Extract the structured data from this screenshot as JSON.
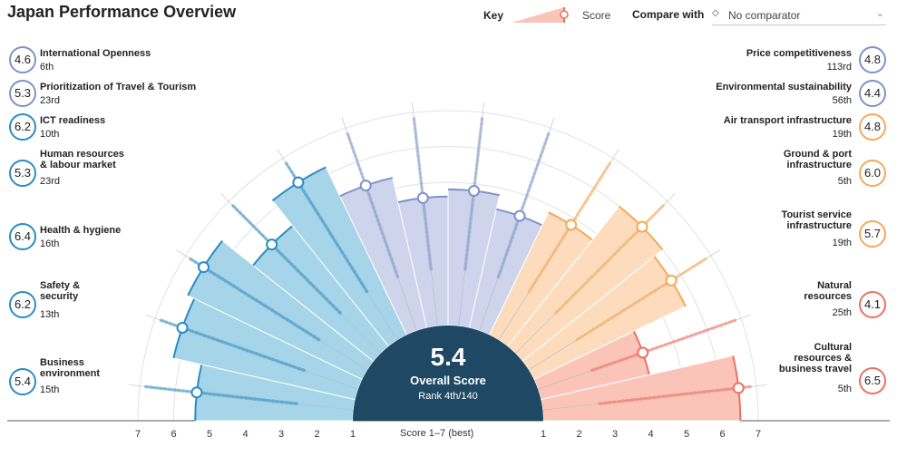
{
  "page": {
    "title": "Japan Performance Overview"
  },
  "key": {
    "label": "Key",
    "score_label": "Score"
  },
  "compare": {
    "label": "Compare with",
    "value": "No comparator",
    "icon": "diamond-icon"
  },
  "overall": {
    "score": "5.4",
    "label": "Overall Score",
    "rank": "Rank 4th/140"
  },
  "axis": {
    "note": "Score 1–7 (best)",
    "left_ticks": [
      "7",
      "6",
      "5",
      "4",
      "3",
      "2",
      "1"
    ],
    "right_ticks": [
      "1",
      "2",
      "3",
      "4",
      "5",
      "6",
      "7"
    ]
  },
  "colors": {
    "blue": "#2b8cc4",
    "blue_fill": "#a6d4e8",
    "purple": "#7f93c9",
    "purple_fill": "#cdd4ec",
    "orange": "#f5a95a",
    "orange_fill": "#fddcbe",
    "red": "#ee7060",
    "red_fill": "#fbc4b9",
    "center": "#1e4863"
  },
  "chart_data": {
    "type": "radial-bar",
    "title": "Japan Performance Overview",
    "scale": [
      1,
      7
    ],
    "series": [
      {
        "name": "Business environment",
        "score": 5.4,
        "rank": "15th",
        "group": "blue"
      },
      {
        "name": "Safety & security",
        "score": 6.2,
        "rank": "13th",
        "group": "blue"
      },
      {
        "name": "Health & hygiene",
        "score": 6.4,
        "rank": "16th",
        "group": "blue"
      },
      {
        "name": "Human resources & labour market",
        "score": 5.3,
        "rank": "23rd",
        "group": "blue"
      },
      {
        "name": "ICT readiness",
        "score": 6.2,
        "rank": "10th",
        "group": "blue"
      },
      {
        "name": "Prioritization of Travel & Tourism",
        "score": 5.3,
        "rank": "23rd",
        "group": "purple"
      },
      {
        "name": "International Openness",
        "score": 4.6,
        "rank": "6th",
        "group": "purple"
      },
      {
        "name": "Price competitiveness",
        "score": 4.8,
        "rank": "113rd",
        "group": "purple"
      },
      {
        "name": "Environmental sustainability",
        "score": 4.4,
        "rank": "56th",
        "group": "purple"
      },
      {
        "name": "Air transport infrastructure",
        "score": 4.8,
        "rank": "19th",
        "group": "orange"
      },
      {
        "name": "Ground & port infrastructure",
        "score": 6.0,
        "rank": "5th",
        "group": "orange"
      },
      {
        "name": "Tourist service infrastructure",
        "score": 5.7,
        "rank": "19th",
        "group": "orange"
      },
      {
        "name": "Natural resources",
        "score": 4.1,
        "rank": "25th",
        "group": "red"
      },
      {
        "name": "Cultural resources & business travel",
        "score": 6.5,
        "rank": "5th",
        "group": "red"
      }
    ]
  },
  "labels_left": [
    {
      "name": "International Openness",
      "score": "4.6",
      "rank": "6th",
      "group": "purple"
    },
    {
      "name": "Prioritization of Travel & Tourism",
      "score": "5.3",
      "rank": "23rd",
      "group": "purple"
    },
    {
      "name": "ICT readiness",
      "score": "6.2",
      "rank": "10th",
      "group": "blue"
    },
    {
      "name": "Human resources\n& labour market",
      "score": "5.3",
      "rank": "23rd",
      "group": "blue"
    },
    {
      "name": "Health & hygiene",
      "score": "6.4",
      "rank": "16th",
      "group": "blue"
    },
    {
      "name": "Safety &\nsecurity",
      "score": "6.2",
      "rank": "13th",
      "group": "blue"
    },
    {
      "name": "Business\nenvironment",
      "score": "5.4",
      "rank": "15th",
      "group": "blue"
    }
  ],
  "labels_right": [
    {
      "name": "Price competitiveness",
      "score": "4.8",
      "rank": "113rd",
      "group": "purple"
    },
    {
      "name": "Environmental sustainability",
      "score": "4.4",
      "rank": "56th",
      "group": "purple"
    },
    {
      "name": "Air transport infrastructure",
      "score": "4.8",
      "rank": "19th",
      "group": "orange"
    },
    {
      "name": "Ground & port\ninfrastructure",
      "score": "6.0",
      "rank": "5th",
      "group": "orange"
    },
    {
      "name": "Tourist service\ninfrastructure",
      "score": "5.7",
      "rank": "19th",
      "group": "orange"
    },
    {
      "name": "Natural\nresources",
      "score": "4.1",
      "rank": "25th",
      "group": "red"
    },
    {
      "name": "Cultural\nresources &\nbusiness travel",
      "score": "6.5",
      "rank": "5th",
      "group": "red"
    }
  ]
}
